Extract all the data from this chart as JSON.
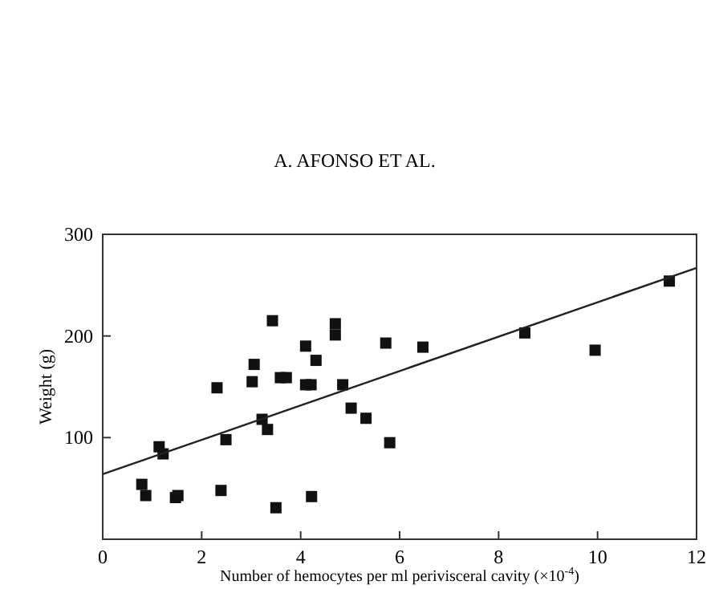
{
  "chart_data": {
    "type": "scatter",
    "xlabel": "Number of hemocytes per ml perivisceral cavity (×10$^{-4}$)",
    "ylabel": "Weight (g)",
    "annotations": [
      "A. AFONSO ET AL."
    ],
    "xlim": [
      0,
      12
    ],
    "ylim": [
      0,
      300
    ],
    "xticks": [
      0,
      2,
      4,
      6,
      8,
      10,
      12
    ],
    "yticks": [
      {
        "value": 0,
        "label": null
      },
      100,
      200,
      300
    ],
    "grid": false,
    "series": [
      {
        "marker": "square",
        "color": "#111111",
        "x": [
          0.79,
          0.87,
          1.14,
          1.22,
          1.47,
          1.52,
          2.31,
          2.39,
          2.49,
          3.02,
          3.06,
          3.22,
          3.33,
          3.43,
          3.5,
          3.59,
          3.71,
          4.1,
          4.1,
          4.21,
          4.22,
          4.31,
          4.7,
          4.7,
          4.85,
          5.02,
          5.32,
          5.72,
          5.8,
          6.47,
          8.53,
          9.95,
          11.45
        ],
        "values": [
          54,
          43,
          91,
          84,
          41,
          43,
          149,
          48,
          98,
          155,
          172,
          118,
          108,
          215,
          31,
          159,
          159,
          190,
          152,
          152,
          42,
          176,
          212,
          201,
          152,
          129,
          119,
          193,
          95,
          189,
          203,
          186,
          254
        ]
      },
      {
        "type": "line",
        "color": "#222222",
        "x": [
          0,
          12
        ],
        "values": [
          64,
          267
        ]
      }
    ]
  }
}
